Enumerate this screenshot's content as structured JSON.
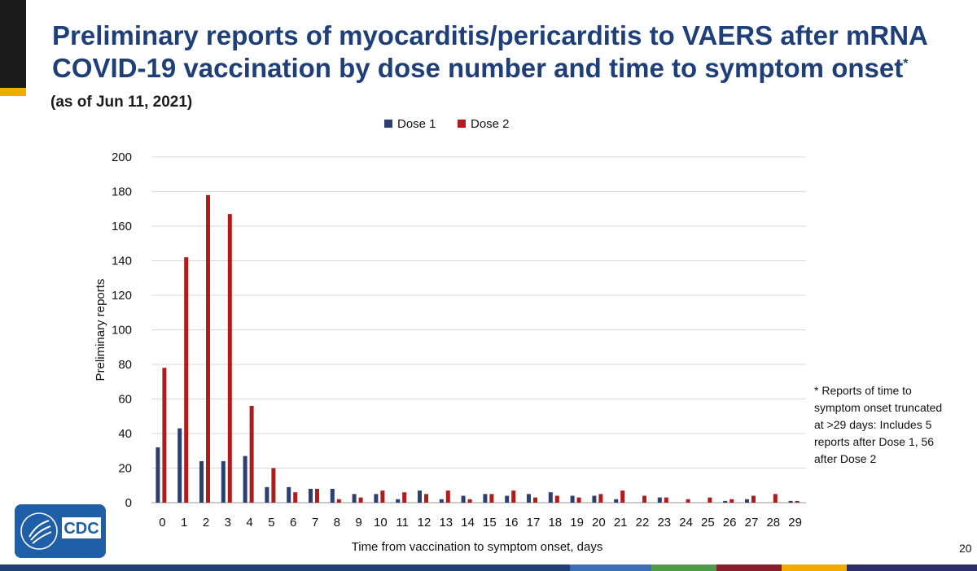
{
  "header": {
    "title": "Preliminary reports of myocarditis/pericarditis to VAERS after mRNA COVID-19 vaccination by dose number and time to symptom onset",
    "title_marker": "*",
    "subtitle": "(as of Jun 11, 2021)"
  },
  "footnote": "* Reports of time to symptom onset truncated at >29 days: Includes 5 reports after Dose 1, 56 after Dose 2",
  "page_number": "20",
  "logo": {
    "text": "CDC",
    "icon": "hhs-eagle-icon"
  },
  "colors": {
    "title": "#1f3f78",
    "dose1": "#2c3f73",
    "dose2": "#b01c1c",
    "grid": "#d9d9d9",
    "band": [
      "#1f3f78",
      "#3a6fb6",
      "#4e9a46",
      "#8a1c2b",
      "#f2a900",
      "#2b2c68"
    ]
  },
  "chart_data": {
    "type": "bar",
    "categories": [
      "0",
      "1",
      "2",
      "3",
      "4",
      "5",
      "6",
      "7",
      "8",
      "9",
      "10",
      "11",
      "12",
      "13",
      "14",
      "15",
      "16",
      "17",
      "18",
      "19",
      "20",
      "21",
      "22",
      "23",
      "24",
      "25",
      "26",
      "27",
      "28",
      "29"
    ],
    "series": [
      {
        "name": "Dose 1",
        "values": [
          32,
          43,
          24,
          24,
          27,
          9,
          9,
          8,
          8,
          5,
          5,
          2,
          7,
          2,
          4,
          5,
          4,
          5,
          6,
          4,
          4,
          2,
          0,
          3,
          0,
          0,
          1,
          2,
          0,
          1
        ]
      },
      {
        "name": "Dose 2",
        "values": [
          78,
          142,
          178,
          167,
          56,
          20,
          6,
          8,
          2,
          3,
          7,
          6,
          5,
          7,
          2,
          5,
          7,
          3,
          4,
          3,
          5,
          7,
          4,
          3,
          2,
          3,
          2,
          4,
          5,
          1
        ]
      }
    ],
    "ylim": [
      0,
      200
    ],
    "yticks": [
      0,
      20,
      40,
      60,
      80,
      100,
      120,
      140,
      160,
      180,
      200
    ],
    "xlabel": "Time from vaccination to symptom onset, days",
    "ylabel": "Preliminary reports",
    "legend_position": "top-center",
    "grid": true
  }
}
